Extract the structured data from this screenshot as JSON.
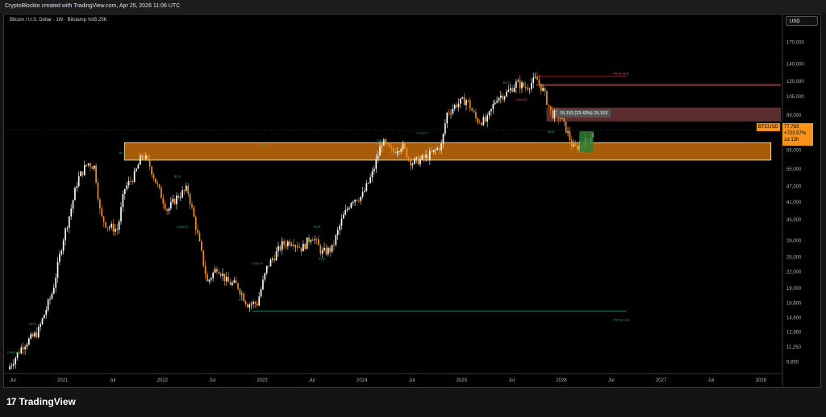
{
  "header": {
    "title": "CryptoBlockto created with TradingView.com, Apr 25, 2026 11:06 UTC",
    "symbol_line": "Bitcoin / U.S. Dollar · 1W · Bitstamp  Vol5.25K",
    "currency": "USD"
  },
  "branding": {
    "logo_text": "TradingView"
  },
  "colors": {
    "bull": "#ffffff",
    "bear": "#f7931a",
    "zone": "#b8660a",
    "resistance": "#5a2e2e",
    "accent": "#f7931a"
  },
  "price_box": {
    "symbol": "BTCUSD",
    "price": "77,783",
    "change": "+723.57%",
    "countdown": "1d 13h"
  },
  "measure_label": "15,153 (23.43%) 15,153",
  "chart_data": {
    "type": "candlestick",
    "title": "Bitcoin / U.S. Dollar · 1W · Bitstamp",
    "y_scale": "log",
    "ylim": [
      9000,
      200000
    ],
    "y_ticks": [
      170000,
      140000,
      120000,
      105000,
      89000,
      77000,
      65000,
      55000,
      47000,
      41000,
      35000,
      29000,
      25000,
      22000,
      19000,
      16600,
      14600,
      12850,
      11250,
      9850
    ],
    "x_ticks": [
      {
        "label": "Jul",
        "date": 2020.5
      },
      {
        "label": "2021",
        "date": 2021.0
      },
      {
        "label": "Jul",
        "date": 2021.5
      },
      {
        "label": "2022",
        "date": 2022.0
      },
      {
        "label": "Jul",
        "date": 2022.5
      },
      {
        "label": "2023",
        "date": 2023.0
      },
      {
        "label": "Jul",
        "date": 2023.5
      },
      {
        "label": "2024",
        "date": 2024.0
      },
      {
        "label": "Jul",
        "date": 2024.5
      },
      {
        "label": "2025",
        "date": 2025.0
      },
      {
        "label": "Jul",
        "date": 2025.5
      },
      {
        "label": "2026",
        "date": 2026.0
      },
      {
        "label": "Jul",
        "date": 2026.5
      },
      {
        "label": "2027",
        "date": 2027.0
      },
      {
        "label": "Jul",
        "date": 2027.5
      },
      {
        "label": "2028",
        "date": 2028.0
      }
    ],
    "xlim": [
      2020.42,
      2028.2
    ],
    "price_path": [
      [
        2020.45,
        9200
      ],
      [
        2020.6,
        11400
      ],
      [
        2020.75,
        12800
      ],
      [
        2020.9,
        18500
      ],
      [
        2021.0,
        29000
      ],
      [
        2021.08,
        38000
      ],
      [
        2021.15,
        50000
      ],
      [
        2021.25,
        58000
      ],
      [
        2021.32,
        56000
      ],
      [
        2021.38,
        36000
      ],
      [
        2021.45,
        33000
      ],
      [
        2021.55,
        32000
      ],
      [
        2021.62,
        46000
      ],
      [
        2021.72,
        52000
      ],
      [
        2021.8,
        63000
      ],
      [
        2021.87,
        57000
      ],
      [
        2021.95,
        47000
      ],
      [
        2022.05,
        38000
      ],
      [
        2022.15,
        43000
      ],
      [
        2022.25,
        46000
      ],
      [
        2022.35,
        31000
      ],
      [
        2022.45,
        20000
      ],
      [
        2022.55,
        23000
      ],
      [
        2022.65,
        20000
      ],
      [
        2022.75,
        19500
      ],
      [
        2022.85,
        16500
      ],
      [
        2022.95,
        16600
      ],
      [
        2023.05,
        23000
      ],
      [
        2023.2,
        28000
      ],
      [
        2023.3,
        29000
      ],
      [
        2023.4,
        27000
      ],
      [
        2023.5,
        30500
      ],
      [
        2023.6,
        26000
      ],
      [
        2023.7,
        27000
      ],
      [
        2023.8,
        35000
      ],
      [
        2023.9,
        42000
      ],
      [
        2024.0,
        43000
      ],
      [
        2024.1,
        52000
      ],
      [
        2024.2,
        70000
      ],
      [
        2024.3,
        64000
      ],
      [
        2024.4,
        68000
      ],
      [
        2024.5,
        58000
      ],
      [
        2024.6,
        60000
      ],
      [
        2024.7,
        63000
      ],
      [
        2024.8,
        68000
      ],
      [
        2024.85,
        90000
      ],
      [
        2024.95,
        98000
      ],
      [
        2025.05,
        102000
      ],
      [
        2025.15,
        85000
      ],
      [
        2025.25,
        84000
      ],
      [
        2025.35,
        104000
      ],
      [
        2025.45,
        108000
      ],
      [
        2025.55,
        118000
      ],
      [
        2025.65,
        114000
      ],
      [
        2025.75,
        123000
      ],
      [
        2025.82,
        110000
      ],
      [
        2025.9,
        90000
      ],
      [
        2025.98,
        88000
      ],
      [
        2026.05,
        78000
      ],
      [
        2026.12,
        66000
      ],
      [
        2026.2,
        68000
      ],
      [
        2026.28,
        72000
      ],
      [
        2026.32,
        77783
      ]
    ],
    "structures": {
      "demand_zone": [
        59500,
        69500
      ],
      "supply_zone_1": [
        84000,
        95000
      ],
      "supply_zone_2": [
        115000,
        117500
      ],
      "weak_high": 125500,
      "strong_low": 15500
    },
    "labels": [
      {
        "text": "BOS",
        "date": 2021.6,
        "price": 63000
      },
      {
        "text": "BOS",
        "date": 2023.02,
        "price": 67500
      },
      {
        "text": "BOS",
        "date": 2020.7,
        "price": 13700
      },
      {
        "text": "CHoCH",
        "date": 2020.5,
        "price": 10600
      },
      {
        "text": "BOS",
        "date": 2022.15,
        "price": 51000
      },
      {
        "text": "CHoCH",
        "date": 2022.2,
        "price": 32500
      },
      {
        "text": "BOS",
        "date": 2022.8,
        "price": 17000
      },
      {
        "text": "CHoCH",
        "date": 2022.95,
        "price": 23500
      },
      {
        "text": "BOS",
        "date": 2023.55,
        "price": 32500
      },
      {
        "text": "BOS",
        "date": 2023.6,
        "price": 24500
      },
      {
        "text": "CHoCH",
        "date": 2024.6,
        "price": 75000
      },
      {
        "text": "CHoCH",
        "date": 2024.2,
        "price": 70500
      },
      {
        "text": "BOS",
        "date": 2025.45,
        "price": 117500
      },
      {
        "text": "CHoCH",
        "date": 2025.6,
        "price": 101000
      },
      {
        "text": "BOS",
        "date": 2025.9,
        "price": 76000
      },
      {
        "text": "Weak High",
        "date": 2026.6,
        "price": 127500
      },
      {
        "text": "Strong Low",
        "date": 2026.6,
        "price": 14200
      }
    ]
  }
}
